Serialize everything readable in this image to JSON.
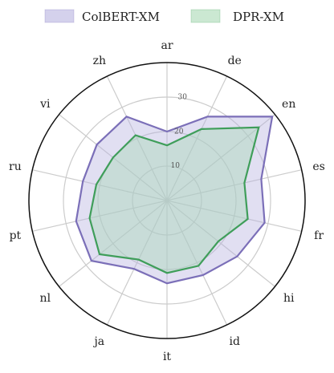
{
  "chart_data": {
    "type": "radar",
    "categories": [
      "ar",
      "de",
      "en",
      "es",
      "fr",
      "hi",
      "id",
      "it",
      "ja",
      "nl",
      "pt",
      "ru",
      "vi",
      "zh"
    ],
    "series": [
      {
        "name": "ColBERT-XM",
        "values": [
          20,
          27,
          39,
          28,
          29,
          26,
          24,
          24,
          22,
          28,
          27,
          25,
          26,
          27
        ],
        "line_color": "#7b6fb8",
        "fill_color": "#b8b2e0"
      },
      {
        "name": "DPR-XM",
        "values": [
          16,
          23,
          34,
          23,
          24,
          19,
          21,
          21,
          19,
          25,
          23,
          21,
          20,
          21
        ],
        "line_color": "#3f9e5a",
        "fill_color": "#a8d8b4"
      }
    ],
    "radial_ticks": [
      "10",
      "20",
      "30"
    ],
    "radial_tick_values": [
      10,
      20,
      30
    ],
    "rlim": [
      0,
      40
    ],
    "grid": true,
    "legend_position": "top"
  }
}
